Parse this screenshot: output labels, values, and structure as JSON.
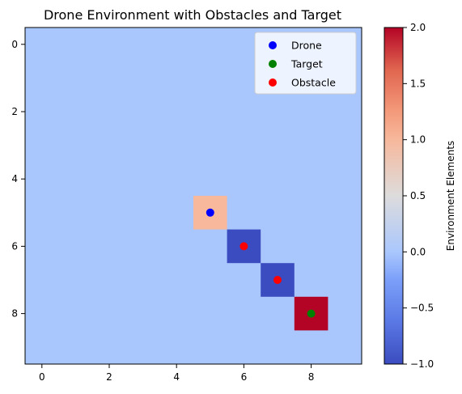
{
  "chart_data": {
    "type": "heatmap",
    "title": "Drone Environment with Obstacles and Target",
    "xlabel": "",
    "ylabel": "",
    "grid_shape": [
      10,
      10
    ],
    "default_value": 0.0,
    "cells": [
      {
        "row": 5,
        "col": 5,
        "value": 1.0
      },
      {
        "row": 6,
        "col": 6,
        "value": -1.0
      },
      {
        "row": 7,
        "col": 7,
        "value": -1.0
      },
      {
        "row": 8,
        "col": 8,
        "value": 2.0
      }
    ],
    "x_ticks": [
      0,
      2,
      4,
      6,
      8
    ],
    "y_ticks": [
      0,
      2,
      4,
      6,
      8
    ],
    "xlim": [
      -0.5,
      9.5
    ],
    "ylim": [
      9.5,
      -0.5
    ],
    "grid": false,
    "colormap": "coolwarm",
    "colorbar": {
      "label": "Environment Elements",
      "range": [
        -1.0,
        2.0
      ],
      "ticks": [
        -1.0,
        -0.5,
        0.0,
        0.5,
        1.0,
        1.5,
        2.0
      ],
      "tick_labels": [
        "−1.0",
        "−0.5",
        "0.0",
        "0.5",
        "1.0",
        "1.5",
        "2.0"
      ]
    },
    "series": [
      {
        "name": "Drone",
        "type": "scatter",
        "color": "#0000ff",
        "points": [
          {
            "x": 5,
            "y": 5
          }
        ]
      },
      {
        "name": "Target",
        "type": "scatter",
        "color": "#008000",
        "points": [
          {
            "x": 8,
            "y": 8
          }
        ]
      },
      {
        "name": "Obstacle",
        "type": "scatter",
        "color": "#ff0000",
        "points": [
          {
            "x": 6,
            "y": 6
          },
          {
            "x": 7,
            "y": 7
          }
        ]
      }
    ],
    "legend": {
      "placement": "upper-right",
      "entries": [
        "Drone",
        "Target",
        "Obstacle"
      ]
    }
  }
}
